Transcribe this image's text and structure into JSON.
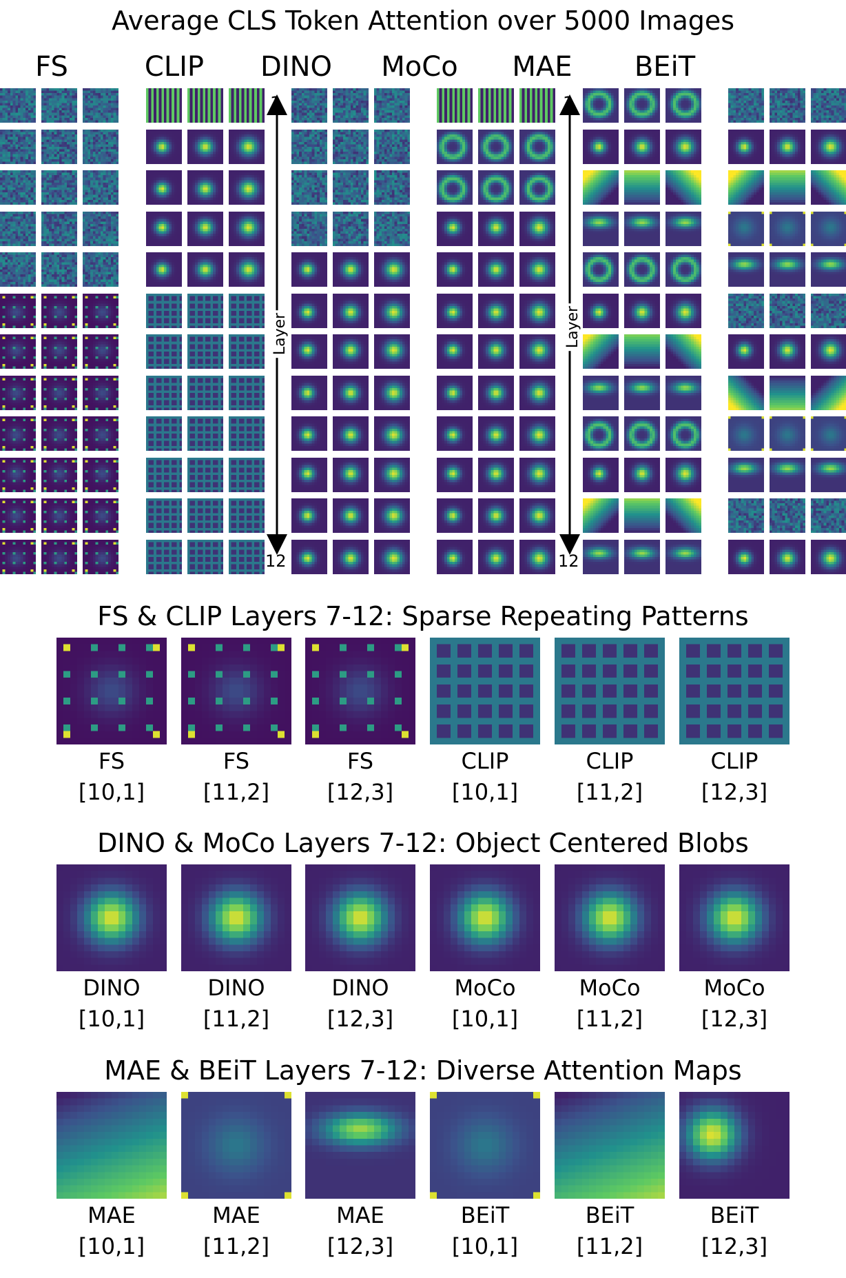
{
  "title": "Average CLS Token Attention over 5000 Images",
  "models": [
    "FS",
    "CLIP",
    "DINO",
    "MoCo",
    "MAE",
    "BEiT"
  ],
  "layer_axis": {
    "label": "Layer",
    "top": "1",
    "bottom": "12"
  },
  "sections": [
    {
      "title": "FS & CLIP Layers 7-12: Sparse Repeating Patterns",
      "captions": [
        {
          "model": "FS",
          "index": "[10,1]"
        },
        {
          "model": "FS",
          "index": "[11,2]"
        },
        {
          "model": "FS",
          "index": "[12,3]"
        },
        {
          "model": "CLIP",
          "index": "[10,1]"
        },
        {
          "model": "CLIP",
          "index": "[11,2]"
        },
        {
          "model": "CLIP",
          "index": "[12,3]"
        }
      ]
    },
    {
      "title": "DINO & MoCo Layers 7-12: Object Centered Blobs",
      "captions": [
        {
          "model": "DINO",
          "index": "[10,1]"
        },
        {
          "model": "DINO",
          "index": "[11,2]"
        },
        {
          "model": "DINO",
          "index": "[12,3]"
        },
        {
          "model": "MoCo",
          "index": "[10,1]"
        },
        {
          "model": "MoCo",
          "index": "[11,2]"
        },
        {
          "model": "MoCo",
          "index": "[12,3]"
        }
      ]
    },
    {
      "title": "MAE & BEiT Layers 7-12: Diverse Attention Maps",
      "captions": [
        {
          "model": "MAE",
          "index": "[10,1]"
        },
        {
          "model": "MAE",
          "index": "[11,2]"
        },
        {
          "model": "MAE",
          "index": "[12,3]"
        },
        {
          "model": "BEiT",
          "index": "[10,1]"
        },
        {
          "model": "BEiT",
          "index": "[11,2]"
        },
        {
          "model": "BEiT",
          "index": "[12,3]"
        }
      ]
    }
  ],
  "colormap": [
    "#440154",
    "#3b528b",
    "#21918c",
    "#5ec962",
    "#fde725"
  ]
}
